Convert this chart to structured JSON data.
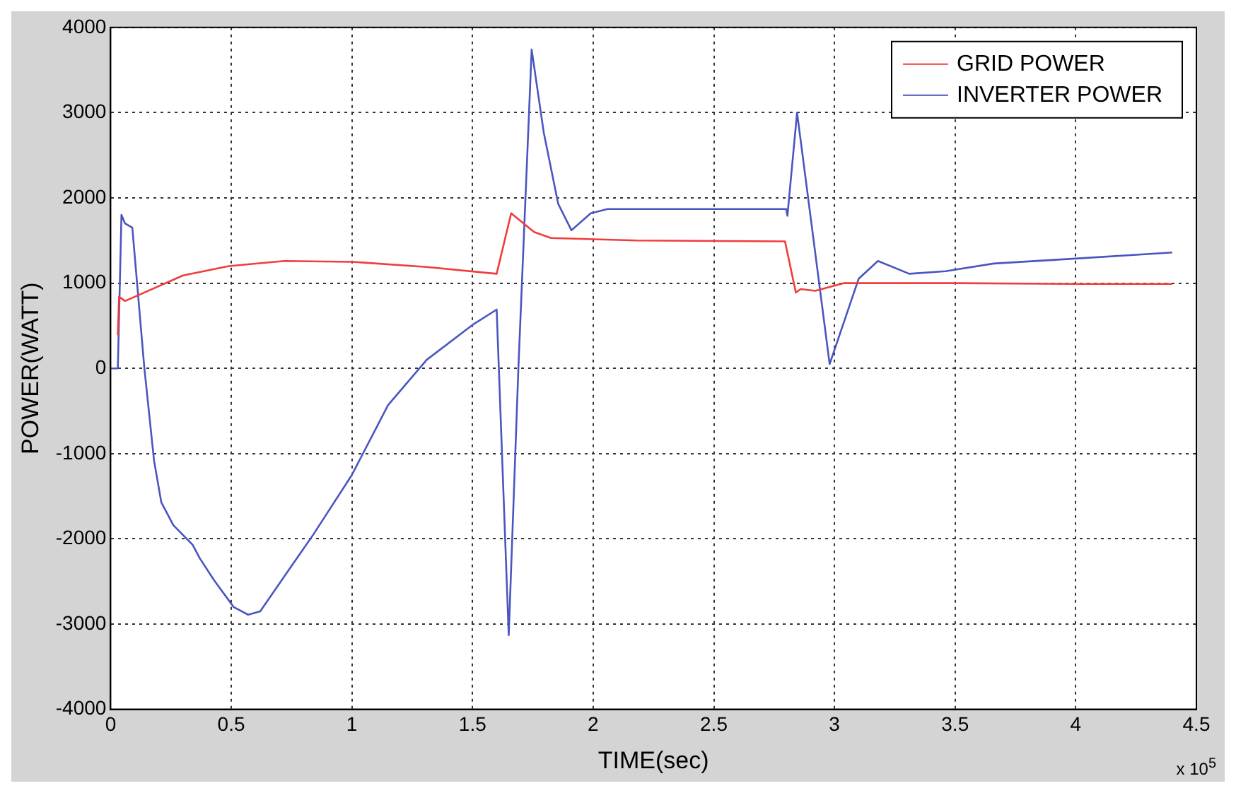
{
  "chart_data": {
    "type": "line",
    "xlabel": "TIME(sec)",
    "ylabel": "POWER(WATT)",
    "annotations": [
      "x 10$^{5}$"
    ],
    "xlim": [
      0,
      4.5
    ],
    "xticks": [
      0,
      0.5,
      1,
      1.5,
      2,
      2.5,
      3,
      3.5,
      4,
      4.5
    ],
    "ylim": [
      -4000,
      4000
    ],
    "yticks": [
      -4000,
      -3000,
      -2000,
      -1000,
      0,
      1000,
      2000,
      3000,
      4000
    ],
    "grid": true,
    "legend": "top right",
    "marker": "none",
    "line_style": "solid",
    "series": [
      {
        "name": "GRID POWER",
        "color": "#f03c3c",
        "x": [
          0.03,
          0.035,
          0.06,
          0.14,
          0.3,
          0.49,
          0.72,
          1.0,
          1.31,
          1.6,
          1.66,
          1.755,
          1.825,
          2.18,
          2.795,
          2.84,
          2.86,
          2.92,
          3.04,
          3.5,
          4.0,
          4.4
        ],
        "values": [
          390,
          840,
          790,
          890,
          1090,
          1200,
          1260,
          1250,
          1190,
          1110,
          1820,
          1600,
          1530,
          1500,
          1490,
          890,
          930,
          910,
          1000,
          1000,
          990,
          990
        ]
      },
      {
        "name": "INVERTER POWER",
        "color": "#4a56c0",
        "x": [
          0,
          0.03,
          0.045,
          0.06,
          0.09,
          0.14,
          0.18,
          0.21,
          0.26,
          0.34,
          0.37,
          0.43,
          0.51,
          0.57,
          0.62,
          0.72,
          0.84,
          1.0,
          1.15,
          1.31,
          1.5,
          1.6,
          1.65,
          1.69,
          1.745,
          1.795,
          1.855,
          1.91,
          1.99,
          2.06,
          2.5,
          2.8,
          2.805,
          2.845,
          2.98,
          3.1,
          3.18,
          3.31,
          3.46,
          3.66,
          4.01,
          4.4
        ],
        "values": [
          0,
          0,
          1800,
          1700,
          1650,
          0,
          -1080,
          -1570,
          -1840,
          -2070,
          -2230,
          -2490,
          -2800,
          -2890,
          -2850,
          -2440,
          -1950,
          -1250,
          -430,
          100,
          510,
          690,
          -3130,
          0,
          3740,
          2770,
          1930,
          1620,
          1820,
          1870,
          1870,
          1870,
          1790,
          3000,
          50,
          1050,
          1260,
          1110,
          1140,
          1230,
          1290,
          1360
        ]
      }
    ]
  }
}
